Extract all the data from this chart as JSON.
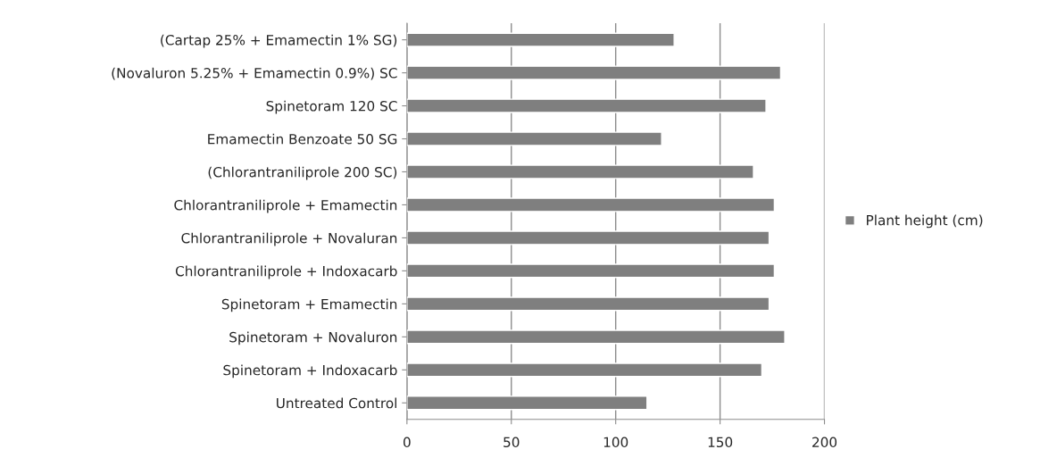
{
  "chart_data": {
    "type": "bar",
    "orientation": "horizontal",
    "categories": [
      "(Cartap 25% + Emamectin 1% SG)",
      "(Novaluron 5.25% + Emamectin 0.9%) SC",
      "Spinetoram 120 SC",
      "Emamectin Benzoate 50 SG",
      "(Chlorantraniliprole 200 SC)",
      "Chlorantraniliprole + Emamectin",
      "Chlorantraniliprole + Novaluran",
      "Chlorantraniliprole + Indoxacarb",
      "Spinetoram + Emamectin",
      "Spinetoram + Novaluron",
      "Spinetoram + Indoxacarb",
      "Untreated Control"
    ],
    "series": [
      {
        "name": "Plant height (cm)",
        "color": "#7f7f7f",
        "values": [
          128,
          179,
          172,
          122,
          166,
          176,
          173.5,
          176,
          173.5,
          181,
          170,
          115
        ]
      }
    ],
    "xlim": [
      0,
      200
    ],
    "xticks": [
      0,
      50,
      100,
      150,
      200
    ],
    "grid": "x",
    "legend": "right"
  }
}
